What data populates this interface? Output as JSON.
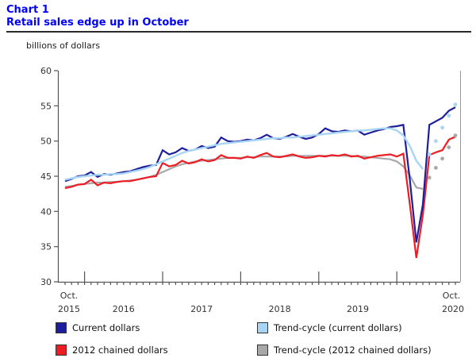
{
  "header": {
    "chart_label": "Chart 1",
    "title": "Retail sales edge up in October"
  },
  "y_axis": {
    "unit_label": "billions of dollars",
    "min": 30,
    "max": 60,
    "step": 5,
    "tick_labels": [
      "60",
      "55",
      "50",
      "45",
      "40",
      "35",
      "30"
    ]
  },
  "x_axis": {
    "start_month_label": "Oct.",
    "start_year_label": "2015",
    "mid_year_labels": [
      "2016",
      "2017",
      "2018",
      "2019"
    ],
    "end_month_label": "Oct.",
    "end_year_label": "2020",
    "months_total": 61,
    "january_tick_indices": [
      3,
      15,
      27,
      39,
      51
    ]
  },
  "colors": {
    "title_blue": "#0000ff",
    "axis": "#555555",
    "right_border": "#999999",
    "current_dollars": "#1c1e9c",
    "chained_dollars": "#ee1c23",
    "trend_current": "#a8d4f5",
    "trend_chained": "#a8a8a8"
  },
  "chart_data": {
    "type": "line",
    "title": "Retail sales edge up in October",
    "xlabel": "",
    "ylabel": "billions of dollars",
    "ylim": [
      30,
      60
    ],
    "x_range": [
      "Oct 2015",
      "Oct 2020"
    ],
    "x_frequency": "monthly",
    "grid": false,
    "legend_position": "bottom",
    "series": [
      {
        "name": "Current dollars",
        "color": "#1c1e9c",
        "style": "solid",
        "line_width": 2.2,
        "values": [
          44.3,
          44.6,
          45.0,
          45.1,
          45.6,
          44.9,
          45.3,
          45.2,
          45.4,
          45.6,
          45.7,
          46.0,
          46.3,
          46.5,
          46.6,
          48.7,
          48.1,
          48.4,
          49.0,
          48.6,
          48.8,
          49.3,
          49.0,
          49.2,
          50.5,
          50.0,
          49.9,
          50.0,
          50.2,
          50.1,
          50.4,
          50.9,
          50.4,
          50.3,
          50.6,
          51.0,
          50.6,
          50.3,
          50.5,
          51.0,
          51.8,
          51.4,
          51.3,
          51.5,
          51.4,
          51.5,
          50.9,
          51.2,
          51.5,
          51.7,
          52.0,
          52.1,
          52.3,
          44.5,
          35.6,
          41.0,
          52.3,
          52.8,
          53.3,
          54.3,
          54.8
        ]
      },
      {
        "name": "2012 chained dollars",
        "color": "#ee1c23",
        "style": "solid",
        "line_width": 2.2,
        "values": [
          43.3,
          43.5,
          43.8,
          43.9,
          44.5,
          43.7,
          44.1,
          44.0,
          44.2,
          44.3,
          44.3,
          44.5,
          44.7,
          44.9,
          45.0,
          46.9,
          46.4,
          46.6,
          47.2,
          46.8,
          47.0,
          47.4,
          47.1,
          47.3,
          48.0,
          47.6,
          47.6,
          47.5,
          47.8,
          47.6,
          48.0,
          48.3,
          47.8,
          47.7,
          47.9,
          48.1,
          47.8,
          47.6,
          47.7,
          47.9,
          47.8,
          48.0,
          47.9,
          48.1,
          47.8,
          47.9,
          47.5,
          47.7,
          47.9,
          48.0,
          48.1,
          47.8,
          48.2,
          41.0,
          33.4,
          39.5,
          48.0,
          48.4,
          48.7,
          50.2,
          50.6
        ]
      },
      {
        "name": "Trend-cycle (current dollars)",
        "color": "#a8d4f5",
        "style": "solid_then_dots",
        "line_width": 2.4,
        "solid_until_index": 55,
        "values": [
          44.5,
          44.7,
          44.9,
          45.0,
          45.1,
          45.2,
          45.2,
          45.3,
          45.3,
          45.4,
          45.6,
          45.8,
          46.0,
          46.3,
          46.7,
          47.1,
          47.5,
          47.9,
          48.3,
          48.6,
          48.8,
          49.0,
          49.2,
          49.4,
          49.6,
          49.7,
          49.8,
          49.9,
          50.0,
          50.1,
          50.2,
          50.3,
          50.4,
          50.4,
          50.5,
          50.5,
          50.6,
          50.7,
          50.8,
          50.9,
          51.0,
          51.1,
          51.2,
          51.3,
          51.4,
          51.5,
          51.5,
          51.6,
          51.7,
          51.8,
          51.8,
          51.5,
          50.8,
          49.3,
          47.2,
          46.0,
          48.1,
          50.0,
          51.9,
          53.6,
          55.2
        ]
      },
      {
        "name": "Trend-cycle (2012 chained dollars)",
        "color": "#a8a8a8",
        "style": "solid_then_dots",
        "line_width": 2.2,
        "solid_until_index": 55,
        "values": [
          43.5,
          43.6,
          43.8,
          43.9,
          44.0,
          44.1,
          44.1,
          44.2,
          44.2,
          44.3,
          44.4,
          44.5,
          44.7,
          44.9,
          45.2,
          45.6,
          46.0,
          46.4,
          46.7,
          46.9,
          47.1,
          47.2,
          47.3,
          47.4,
          47.5,
          47.6,
          47.6,
          47.6,
          47.7,
          47.7,
          47.8,
          47.8,
          47.8,
          47.8,
          47.8,
          47.9,
          47.9,
          47.9,
          47.9,
          47.9,
          47.9,
          47.9,
          47.9,
          47.9,
          47.9,
          47.8,
          47.8,
          47.7,
          47.6,
          47.5,
          47.4,
          47.1,
          46.4,
          45.1,
          43.4,
          43.2,
          44.8,
          46.2,
          47.5,
          49.1,
          50.8
        ]
      }
    ]
  }
}
